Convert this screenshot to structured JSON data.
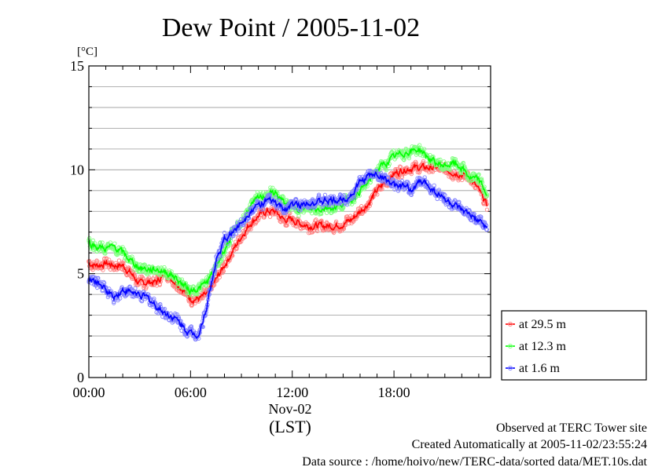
{
  "chart_data": {
    "type": "line",
    "title": "Dew Point / 2005-11-02",
    "ylabel": "[°C]",
    "xlabel": "(LST)",
    "date_label": "Nov-02",
    "ylim": [
      0,
      15
    ],
    "xlim": [
      0,
      23.7
    ],
    "yticks": [
      0,
      5,
      10,
      15
    ],
    "yticklabels": [
      "0",
      "5",
      "10",
      "15"
    ],
    "xticks": [
      0,
      6,
      12,
      18
    ],
    "xticklabels": [
      "00:00",
      "06:00",
      "12:00",
      "18:00"
    ],
    "grid": "horizontal, every 1",
    "legend_position": "right",
    "series": [
      {
        "name": "at 29.5 m",
        "color": "#ff0000",
        "x": [
          0,
          0.5,
          1,
          1.5,
          2,
          2.5,
          3,
          3.5,
          4,
          4.5,
          5,
          5.5,
          6,
          6.5,
          7,
          7.5,
          8,
          8.5,
          9,
          9.5,
          10,
          10.5,
          11,
          11.5,
          12,
          12.5,
          13,
          13.5,
          14,
          14.5,
          15,
          15.5,
          16,
          16.5,
          17,
          17.5,
          18,
          18.5,
          19,
          19.5,
          20,
          20.5,
          21,
          21.5,
          22,
          22.5,
          23,
          23.5
        ],
        "values": [
          5.5,
          5.4,
          5.5,
          5.4,
          5.4,
          5.0,
          4.5,
          4.6,
          4.6,
          5.0,
          4.7,
          4.3,
          3.8,
          3.8,
          4.0,
          4.7,
          5.4,
          6.1,
          6.8,
          7.4,
          7.8,
          8.0,
          8.0,
          7.6,
          7.6,
          7.4,
          7.3,
          7.3,
          7.3,
          7.3,
          7.4,
          7.6,
          8.0,
          8.4,
          9.0,
          9.4,
          9.8,
          10.0,
          10.1,
          10.1,
          10.1,
          10.1,
          10.0,
          9.9,
          9.8,
          9.6,
          9.0,
          8.3
        ]
      },
      {
        "name": "at 12.3 m",
        "color": "#00ff00",
        "x": [
          0,
          0.5,
          1,
          1.5,
          2,
          2.5,
          3,
          3.5,
          4,
          4.5,
          5,
          5.5,
          6,
          6.5,
          7,
          7.5,
          8,
          8.5,
          9,
          9.5,
          10,
          10.5,
          11,
          11.5,
          12,
          12.5,
          13,
          13.5,
          14,
          14.5,
          15,
          15.5,
          16,
          16.5,
          17,
          17.5,
          18,
          18.5,
          19,
          19.5,
          20,
          20.5,
          21,
          21.5,
          22,
          22.5,
          23,
          23.5
        ],
        "values": [
          6.5,
          6.3,
          6.2,
          6.3,
          6.0,
          5.6,
          5.3,
          5.2,
          5.2,
          5.1,
          4.9,
          4.5,
          4.2,
          4.3,
          4.6,
          5.3,
          6.2,
          6.9,
          7.5,
          8.2,
          8.6,
          8.8,
          8.9,
          8.4,
          8.2,
          8.2,
          8.1,
          8.1,
          8.2,
          8.2,
          8.4,
          8.6,
          9.0,
          9.4,
          10.0,
          10.3,
          10.6,
          10.8,
          10.9,
          11.0,
          10.6,
          10.3,
          10.2,
          10.3,
          10.1,
          9.6,
          9.5,
          8.8
        ]
      },
      {
        "name": "at 1.6 m",
        "color": "#0000ff",
        "x": [
          0,
          0.5,
          1,
          1.5,
          2,
          2.5,
          3,
          3.5,
          4,
          4.5,
          5,
          5.5,
          6,
          6.5,
          7,
          7.5,
          8,
          8.5,
          9,
          9.5,
          10,
          10.5,
          11,
          11.5,
          12,
          12.5,
          13,
          13.5,
          14,
          14.5,
          15,
          15.5,
          16,
          16.5,
          17,
          17.5,
          18,
          18.5,
          19,
          19.5,
          20,
          20.5,
          21,
          21.5,
          22,
          22.5,
          23,
          23.5
        ],
        "values": [
          4.7,
          4.6,
          4.2,
          3.9,
          4.2,
          4.1,
          4.0,
          3.8,
          3.4,
          3.1,
          2.9,
          2.5,
          2.1,
          2.1,
          3.6,
          5.6,
          6.6,
          7.0,
          7.5,
          8.0,
          8.3,
          8.5,
          8.4,
          8.1,
          8.3,
          8.3,
          8.5,
          8.4,
          8.5,
          8.5,
          8.6,
          8.8,
          9.4,
          9.7,
          9.8,
          9.6,
          9.2,
          9.2,
          9.0,
          9.4,
          9.3,
          8.9,
          8.6,
          8.3,
          8.0,
          7.8,
          7.5,
          7.2
        ]
      }
    ]
  },
  "footer": {
    "line1": "Observed at TERC Tower site",
    "line2": "Created Automatically at 2005-11-02/23:55:24",
    "line3": "Data source : /home/hoivo/new/TERC-data/sorted  data/MET.10s.dat"
  }
}
